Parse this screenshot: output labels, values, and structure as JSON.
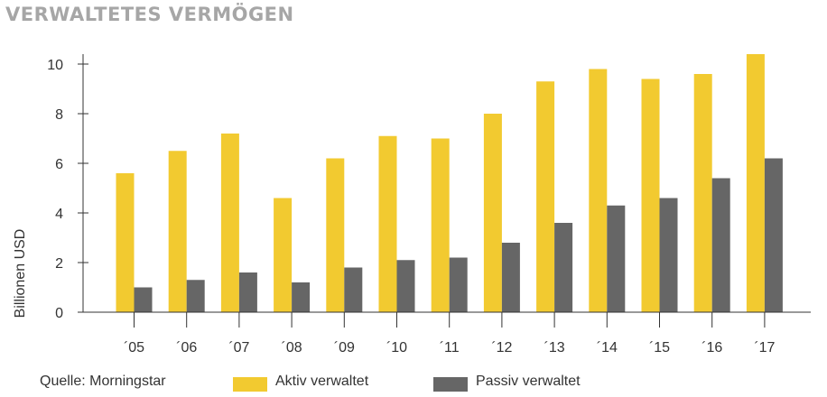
{
  "title": "VERWALTETES VERMÖGEN",
  "source": "Quelle: Morningstar",
  "colors": {
    "active": "#f2ca30",
    "passive": "#666666",
    "title": "#a6a6a6"
  },
  "chart_data": {
    "type": "bar",
    "title": "VERWALTETES VERMÖGEN",
    "xlabel": "",
    "ylabel": "Billionen USD",
    "ylim": [
      0,
      10
    ],
    "yticks": [
      0,
      2,
      4,
      6,
      8,
      10
    ],
    "grid": false,
    "legend_position": "bottom",
    "categories": [
      "´05",
      "´06",
      "´07",
      "´08",
      "´09",
      "´10",
      "´11",
      "´12",
      "´13",
      "´14",
      "´15",
      "´16",
      "´17"
    ],
    "series": [
      {
        "name": "Aktiv verwaltet",
        "color": "#f2ca30",
        "values": [
          5.6,
          6.5,
          7.2,
          4.6,
          6.2,
          7.1,
          7.0,
          8.0,
          9.3,
          9.8,
          9.4,
          9.6,
          10.4
        ]
      },
      {
        "name": "Passiv verwaltet",
        "color": "#666666",
        "values": [
          1.0,
          1.3,
          1.6,
          1.2,
          1.8,
          2.1,
          2.2,
          2.8,
          3.6,
          4.3,
          4.6,
          5.4,
          6.2
        ]
      }
    ]
  }
}
